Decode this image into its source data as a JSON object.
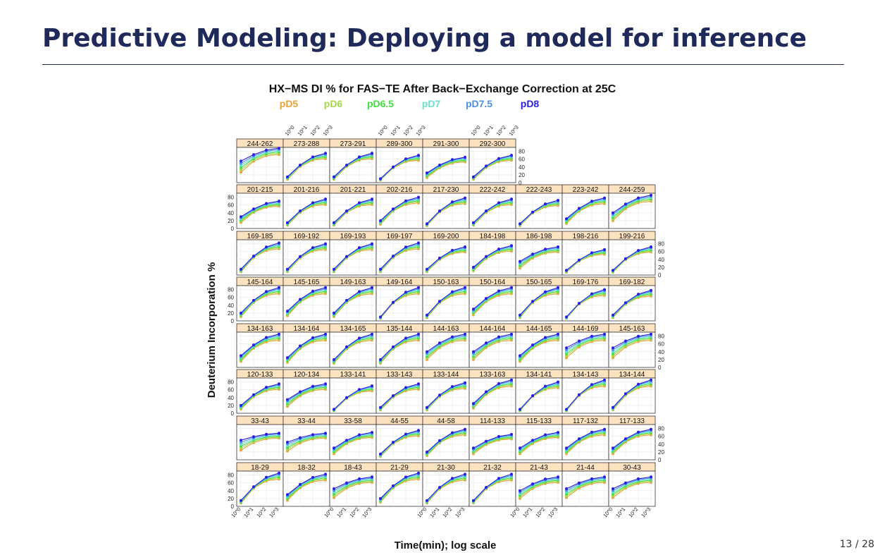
{
  "slide": {
    "title": "Predictive Modeling: Deploying a model for inference",
    "page": "13 / 28"
  },
  "chart_data": {
    "type": "line",
    "title": "HX−MS DI % for FAS−TE After Back−Exchange Correction at 25C",
    "xlabel": "Time(min); log scale",
    "ylabel": "Deuterium Incorporation %",
    "x": [
      0,
      1,
      2,
      3
    ],
    "x_tick_labels": [
      "10^0",
      "10^1",
      "10^2",
      "10^3"
    ],
    "ylim": [
      0,
      90
    ],
    "y_ticks": [
      "0",
      "20",
      "40",
      "60",
      "80"
    ],
    "grid": true,
    "legend_position": "top",
    "series_names": [
      "pD5",
      "pD6",
      "pD6.5",
      "pD7",
      "pD7.5",
      "pD8"
    ],
    "series_colors": [
      "#e8a23a",
      "#a8d84a",
      "#44dd44",
      "#66e0cc",
      "#4a90e8",
      "#2a1ee0"
    ],
    "panels": [
      {
        "label": "244-262",
        "a": 55,
        "b": 88
      },
      {
        "label": "273-288",
        "a": 15,
        "b": 75
      },
      {
        "label": "273-291",
        "a": 15,
        "b": 75
      },
      {
        "label": "289-300",
        "a": 10,
        "b": 70
      },
      {
        "label": "291-300",
        "a": 25,
        "b": 65
      },
      {
        "label": "292-300",
        "a": 15,
        "b": 70
      },
      {
        "label": "201-215",
        "a": 30,
        "b": 70
      },
      {
        "label": "201-216",
        "a": 15,
        "b": 75
      },
      {
        "label": "201-221",
        "a": 15,
        "b": 75
      },
      {
        "label": "202-216",
        "a": 20,
        "b": 80
      },
      {
        "label": "217-230",
        "a": 12,
        "b": 78
      },
      {
        "label": "222-242",
        "a": 15,
        "b": 75
      },
      {
        "label": "222-243",
        "a": 12,
        "b": 72
      },
      {
        "label": "223-242",
        "a": 25,
        "b": 78
      },
      {
        "label": "244-259",
        "a": 40,
        "b": 85
      },
      {
        "label": "169-185",
        "a": 15,
        "b": 82
      },
      {
        "label": "169-192",
        "a": 15,
        "b": 80
      },
      {
        "label": "169-193",
        "a": 15,
        "b": 80
      },
      {
        "label": "169-197",
        "a": 15,
        "b": 82
      },
      {
        "label": "169-200",
        "a": 15,
        "b": 72
      },
      {
        "label": "184-198",
        "a": 20,
        "b": 75
      },
      {
        "label": "186-198",
        "a": 35,
        "b": 72
      },
      {
        "label": "198-216",
        "a": 12,
        "b": 65
      },
      {
        "label": "199-216",
        "a": 12,
        "b": 72
      },
      {
        "label": "145-164",
        "a": 20,
        "b": 85
      },
      {
        "label": "145-165",
        "a": 25,
        "b": 85
      },
      {
        "label": "149-163",
        "a": 20,
        "b": 85
      },
      {
        "label": "149-164",
        "a": 10,
        "b": 85
      },
      {
        "label": "150-163",
        "a": 15,
        "b": 85
      },
      {
        "label": "150-164",
        "a": 30,
        "b": 85
      },
      {
        "label": "150-165",
        "a": 15,
        "b": 85
      },
      {
        "label": "169-176",
        "a": 10,
        "b": 80
      },
      {
        "label": "169-182",
        "a": 15,
        "b": 78
      },
      {
        "label": "134-163",
        "a": 30,
        "b": 85
      },
      {
        "label": "134-164",
        "a": 25,
        "b": 85
      },
      {
        "label": "134-165",
        "a": 20,
        "b": 85
      },
      {
        "label": "135-144",
        "a": 20,
        "b": 85
      },
      {
        "label": "144-163",
        "a": 40,
        "b": 85
      },
      {
        "label": "144-164",
        "a": 40,
        "b": 85
      },
      {
        "label": "144-165",
        "a": 30,
        "b": 85
      },
      {
        "label": "144-169",
        "a": 50,
        "b": 85
      },
      {
        "label": "145-163",
        "a": 50,
        "b": 85
      },
      {
        "label": "120-133",
        "a": 20,
        "b": 75
      },
      {
        "label": "120-134",
        "a": 35,
        "b": 75
      },
      {
        "label": "133-141",
        "a": 10,
        "b": 70
      },
      {
        "label": "133-143",
        "a": 15,
        "b": 75
      },
      {
        "label": "133-144",
        "a": 15,
        "b": 78
      },
      {
        "label": "133-163",
        "a": 25,
        "b": 85
      },
      {
        "label": "134-141",
        "a": 10,
        "b": 80
      },
      {
        "label": "134-143",
        "a": 10,
        "b": 85
      },
      {
        "label": "134-144",
        "a": 15,
        "b": 85
      },
      {
        "label": "33-43",
        "a": 50,
        "b": 68
      },
      {
        "label": "33-44",
        "a": 45,
        "b": 68
      },
      {
        "label": "33-58",
        "a": 30,
        "b": 70
      },
      {
        "label": "44-55",
        "a": 15,
        "b": 75
      },
      {
        "label": "44-58",
        "a": 20,
        "b": 78
      },
      {
        "label": "114-133",
        "a": 30,
        "b": 65
      },
      {
        "label": "115-133",
        "a": 30,
        "b": 70
      },
      {
        "label": "117-132",
        "a": 30,
        "b": 78
      },
      {
        "label": "117-133",
        "a": 30,
        "b": 78
      },
      {
        "label": "18-29",
        "a": 15,
        "b": 85
      },
      {
        "label": "18-32",
        "a": 30,
        "b": 82
      },
      {
        "label": "18-43",
        "a": 45,
        "b": 75
      },
      {
        "label": "21-29",
        "a": 20,
        "b": 85
      },
      {
        "label": "21-30",
        "a": 15,
        "b": 82
      },
      {
        "label": "21-32",
        "a": 15,
        "b": 82
      },
      {
        "label": "21-43",
        "a": 40,
        "b": 75
      },
      {
        "label": "21-44",
        "a": 45,
        "b": 75
      },
      {
        "label": "30-43",
        "a": 45,
        "b": 75
      }
    ]
  }
}
